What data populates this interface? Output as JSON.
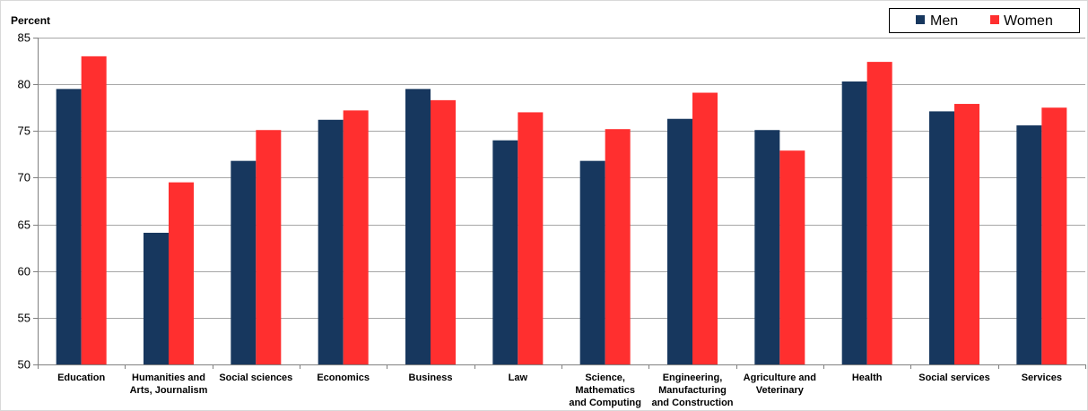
{
  "chart_data": {
    "type": "bar",
    "ylabel": "Percent",
    "xlabel": "",
    "ylim": [
      50,
      85
    ],
    "yticks": [
      50,
      55,
      60,
      65,
      70,
      75,
      80,
      85
    ],
    "grid": true,
    "legend_position": "top-right",
    "categories": [
      [
        "Education"
      ],
      [
        "Humanities and",
        "Arts, Journalism"
      ],
      [
        "Social sciences"
      ],
      [
        "Economics"
      ],
      [
        "Business"
      ],
      [
        "Law"
      ],
      [
        "Science,",
        "Mathematics",
        "and Computing"
      ],
      [
        "Engineering,",
        "Manufacturing",
        "and Construction"
      ],
      [
        "Agriculture and",
        "Veterinary"
      ],
      [
        "Health"
      ],
      [
        "Social services"
      ],
      [
        "Services"
      ]
    ],
    "series": [
      {
        "name": "Men",
        "color": "#17375e",
        "values": [
          79.5,
          64.1,
          71.8,
          76.2,
          79.5,
          74.0,
          71.8,
          76.3,
          75.1,
          80.3,
          77.1,
          75.6
        ]
      },
      {
        "name": "Women",
        "color": "#ff2f2f",
        "values": [
          83.0,
          69.5,
          75.1,
          77.2,
          78.3,
          77.0,
          75.2,
          79.1,
          72.9,
          82.4,
          77.9,
          77.5
        ]
      }
    ]
  }
}
